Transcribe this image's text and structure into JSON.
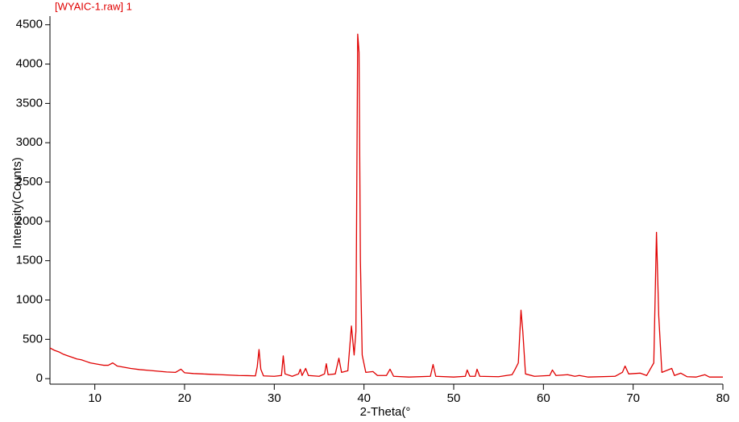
{
  "chart_data": {
    "type": "line",
    "title": "[WYAIC-1.raw] 1",
    "x_label": "2-Theta(°",
    "y_label": "Intensity(Counts)",
    "color": "#e00000",
    "xlim": [
      5,
      80
    ],
    "ylim": [
      -70,
      4610
    ],
    "xticks": [
      10,
      20,
      30,
      40,
      50,
      60,
      70,
      80
    ],
    "yticks": [
      0,
      500,
      1000,
      1500,
      2000,
      2500,
      3000,
      3500,
      4000,
      4500
    ],
    "x": [
      5,
      5.5,
      6,
      6.5,
      7,
      7.5,
      8,
      8.5,
      9,
      9.5,
      10,
      10.5,
      11,
      11.5,
      12,
      12.5,
      13,
      14,
      15,
      16,
      17,
      18,
      19,
      19.6,
      20,
      21,
      22,
      23,
      24,
      25,
      26,
      27,
      27.9,
      28.1,
      28.3,
      28.5,
      28.8,
      30,
      30.8,
      31.0,
      31.2,
      32,
      32.7,
      32.9,
      33.1,
      33.5,
      33.8,
      35,
      35.6,
      35.8,
      36.0,
      36.8,
      37.2,
      37.5,
      38.2,
      38.6,
      38.9,
      39.1,
      39.3,
      39.45,
      39.6,
      39.8,
      40.2,
      41,
      41.5,
      42.5,
      42.9,
      43.3,
      45,
      47.4,
      47.7,
      48.0,
      50,
      51.3,
      51.5,
      51.8,
      52.4,
      52.6,
      52.9,
      55,
      56.5,
      56.8,
      57.2,
      57.5,
      57.7,
      58.0,
      59,
      60.7,
      61.0,
      61.4,
      62.7,
      63.5,
      64,
      65,
      68,
      68.8,
      69.1,
      69.5,
      70.8,
      71.5,
      72.3,
      72.6,
      72.85,
      73.2,
      74.3,
      74.6,
      75.3,
      76,
      77,
      78,
      78.5,
      80
    ],
    "values": [
      390,
      360,
      340,
      310,
      290,
      270,
      250,
      240,
      220,
      200,
      190,
      180,
      170,
      170,
      200,
      160,
      150,
      130,
      115,
      105,
      95,
      85,
      80,
      120,
      75,
      65,
      60,
      55,
      50,
      45,
      40,
      38,
      35,
      150,
      370,
      120,
      35,
      30,
      40,
      290,
      60,
      30,
      60,
      120,
      40,
      130,
      40,
      30,
      60,
      190,
      50,
      60,
      260,
      80,
      100,
      670,
      300,
      600,
      4380,
      4150,
      1500,
      300,
      80,
      90,
      40,
      40,
      120,
      30,
      20,
      30,
      180,
      30,
      20,
      30,
      110,
      30,
      30,
      120,
      30,
      25,
      50,
      110,
      200,
      870,
      600,
      60,
      30,
      40,
      110,
      40,
      50,
      30,
      40,
      20,
      30,
      80,
      160,
      60,
      70,
      40,
      200,
      1860,
      800,
      80,
      130,
      40,
      70,
      25,
      20,
      50,
      20,
      20
    ]
  }
}
